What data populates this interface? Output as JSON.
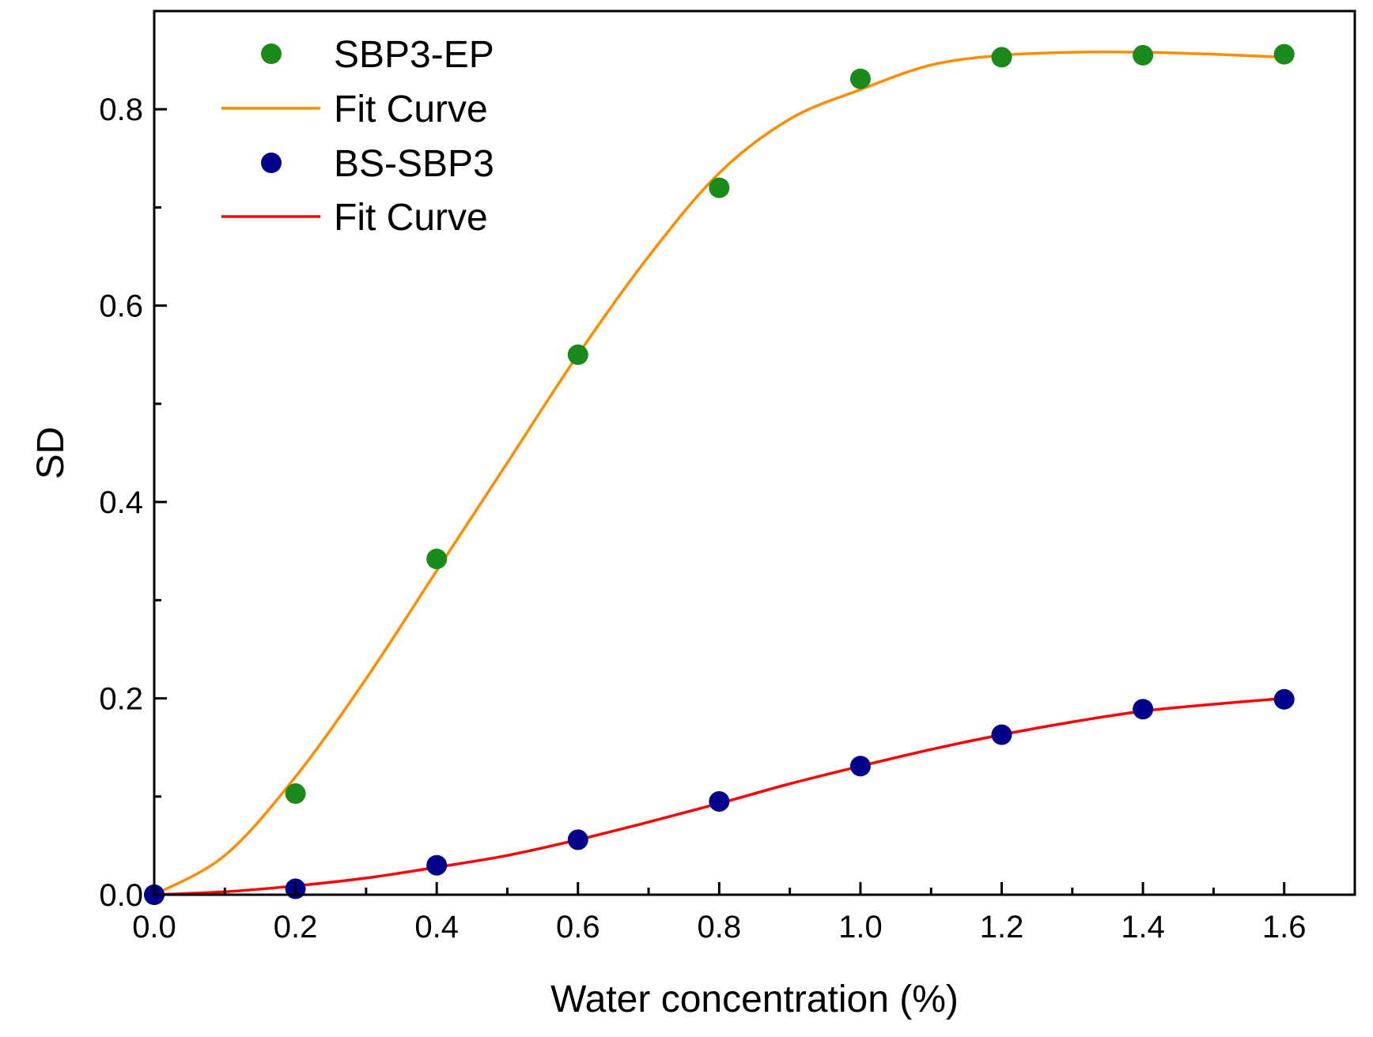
{
  "chart_data": {
    "type": "scatter",
    "title": "",
    "xlabel": "Water concentration (%)",
    "ylabel": "SD",
    "xlim": [
      0.0,
      1.7
    ],
    "ylim": [
      0.0,
      0.9
    ],
    "xticks": [
      "0.0",
      "0.2",
      "0.4",
      "0.6",
      "0.8",
      "1.0",
      "1.2",
      "1.4",
      "1.6"
    ],
    "xtick_values": [
      0.0,
      0.2,
      0.4,
      0.6,
      0.8,
      1.0,
      1.2,
      1.4,
      1.6
    ],
    "yticks": [
      "0.0",
      "0.2",
      "0.4",
      "0.6",
      "0.8"
    ],
    "ytick_values": [
      0.0,
      0.2,
      0.4,
      0.6,
      0.8
    ],
    "grid": false,
    "legend_position": "top-left",
    "series": [
      {
        "name": "SBP3-EP",
        "kind": "points",
        "color": "#1a8a1a",
        "x": [
          0.0,
          0.2,
          0.4,
          0.6,
          0.8,
          1.0,
          1.2,
          1.4,
          1.6
        ],
        "y": [
          0.0,
          0.103,
          0.342,
          0.55,
          0.72,
          0.831,
          0.853,
          0.855,
          0.856
        ]
      },
      {
        "name": "Fit Curve",
        "kind": "line",
        "color": "#ff8c00",
        "x": [
          0.0,
          0.1,
          0.2,
          0.3,
          0.4,
          0.5,
          0.6,
          0.7,
          0.8,
          0.9,
          1.0,
          1.1,
          1.2,
          1.3,
          1.4,
          1.5,
          1.6
        ],
        "y": [
          0.0,
          0.04,
          0.12,
          0.22,
          0.33,
          0.44,
          0.55,
          0.65,
          0.735,
          0.79,
          0.82,
          0.845,
          0.855,
          0.858,
          0.858,
          0.856,
          0.853
        ]
      },
      {
        "name": "BS-SBP3",
        "kind": "points",
        "color": "#00008b",
        "x": [
          0.0,
          0.2,
          0.4,
          0.6,
          0.8,
          1.0,
          1.2,
          1.4,
          1.6
        ],
        "y": [
          0.0,
          0.006,
          0.03,
          0.056,
          0.095,
          0.131,
          0.163,
          0.189,
          0.199
        ]
      },
      {
        "name": "Fit Curve",
        "kind": "line",
        "color": "#ff0000",
        "x": [
          0.0,
          0.1,
          0.2,
          0.3,
          0.4,
          0.5,
          0.6,
          0.7,
          0.8,
          0.9,
          1.0,
          1.1,
          1.2,
          1.3,
          1.4,
          1.5,
          1.6
        ],
        "y": [
          0.0,
          0.003,
          0.009,
          0.017,
          0.028,
          0.04,
          0.056,
          0.074,
          0.093,
          0.113,
          0.131,
          0.148,
          0.163,
          0.176,
          0.187,
          0.194,
          0.2
        ]
      }
    ]
  }
}
